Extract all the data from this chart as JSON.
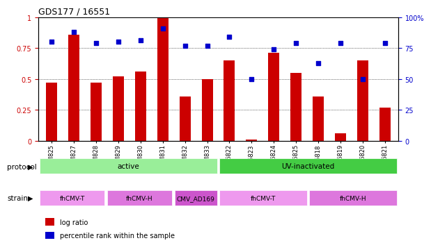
{
  "title": "GDS177 / 16551",
  "samples": [
    "GSM825",
    "GSM827",
    "GSM828",
    "GSM829",
    "GSM830",
    "GSM831",
    "GSM832",
    "GSM833",
    "GSM6822",
    "GSM6823",
    "GSM6824",
    "GSM6825",
    "GSM6818",
    "GSM6819",
    "GSM6820",
    "GSM6821"
  ],
  "log_ratio": [
    0.47,
    0.86,
    0.47,
    0.52,
    0.56,
    1.0,
    0.36,
    0.5,
    0.65,
    0.01,
    0.71,
    0.55,
    0.36,
    0.06,
    0.65,
    0.27
  ],
  "pct_rank": [
    0.8,
    0.88,
    0.79,
    0.8,
    0.81,
    0.91,
    0.77,
    0.77,
    0.84,
    0.5,
    0.74,
    0.79,
    0.63,
    0.79,
    0.5,
    0.79
  ],
  "bar_color": "#cc0000",
  "dot_color": "#0000cc",
  "ylim_left": [
    0,
    1.0
  ],
  "ylim_right": [
    0,
    100
  ],
  "yticks_left": [
    0,
    0.25,
    0.5,
    0.75,
    1.0
  ],
  "ytick_labels_left": [
    "0",
    "0.25",
    "0.5",
    "0.75",
    "1"
  ],
  "yticks_right": [
    0,
    25,
    50,
    75,
    100
  ],
  "ytick_labels_right": [
    "0",
    "25",
    "50",
    "75",
    "100%"
  ],
  "protocol_groups": [
    {
      "label": "active",
      "start": 0,
      "end": 7,
      "color": "#99ee99"
    },
    {
      "label": "UV-inactivated",
      "start": 8,
      "end": 15,
      "color": "#44cc44"
    }
  ],
  "strain_groups": [
    {
      "label": "fhCMV-T",
      "start": 0,
      "end": 2,
      "color": "#ee99ee"
    },
    {
      "label": "fhCMV-H",
      "start": 3,
      "end": 5,
      "color": "#dd77dd"
    },
    {
      "label": "CMV_AD169",
      "start": 6,
      "end": 7,
      "color": "#cc55cc"
    },
    {
      "label": "fhCMV-T",
      "start": 8,
      "end": 11,
      "color": "#ee99ee"
    },
    {
      "label": "fhCMV-H",
      "start": 12,
      "end": 15,
      "color": "#dd77dd"
    }
  ],
  "legend_items": [
    {
      "label": "log ratio",
      "color": "#cc0000"
    },
    {
      "label": "percentile rank within the sample",
      "color": "#0000cc"
    }
  ],
  "protocol_label": "protocol",
  "strain_label": "strain",
  "bar_width": 0.5
}
